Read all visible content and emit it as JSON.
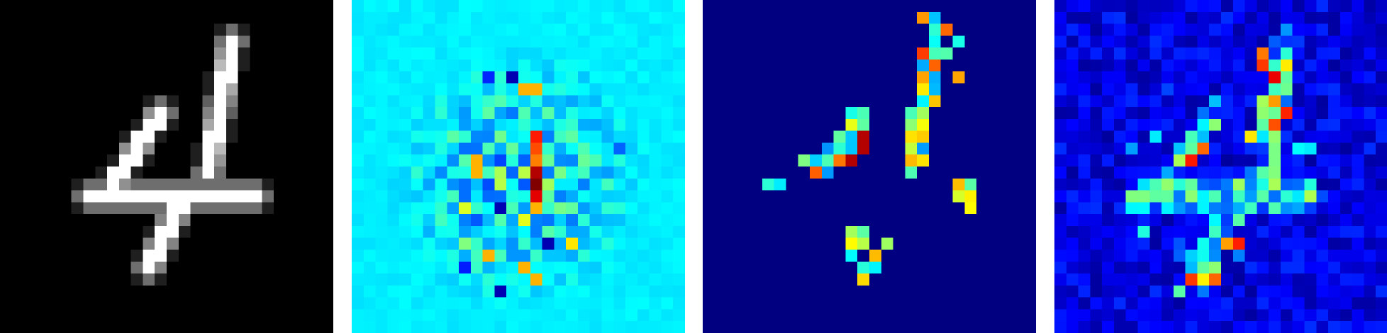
{
  "figure": {
    "background": "#ffffff",
    "panels": [
      {
        "id": "input-digit",
        "colormap": "gray",
        "background": "#000000"
      },
      {
        "id": "saliency-signed",
        "colormap": "jet",
        "background": "#13e8e0"
      },
      {
        "id": "saliency-positive",
        "colormap": "jet",
        "background": "#00007f"
      },
      {
        "id": "saliency-noisy",
        "colormap": "jet",
        "background": "#00009a"
      }
    ]
  }
}
